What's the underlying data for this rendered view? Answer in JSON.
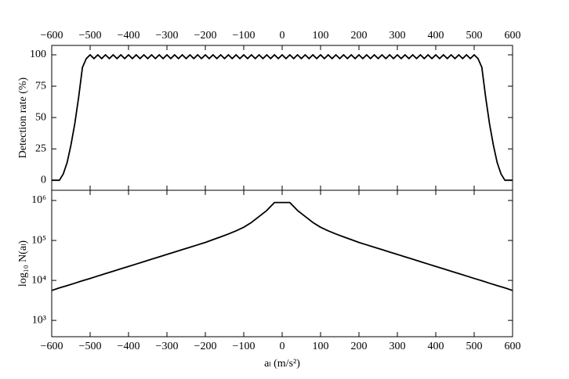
{
  "chart_data": [
    {
      "type": "line",
      "ylabel": "Detection rate (%)",
      "xaxis_position": "top",
      "x": [
        -600,
        -590,
        -580,
        -570,
        -560,
        -550,
        -540,
        -530,
        -520,
        -510,
        -500,
        -490,
        -480,
        -470,
        -460,
        -450,
        -440,
        -430,
        -420,
        -410,
        -400,
        -390,
        -380,
        -370,
        -360,
        -350,
        -340,
        -330,
        -320,
        -310,
        -300,
        -290,
        -280,
        -270,
        -260,
        -250,
        -240,
        -230,
        -220,
        -210,
        -200,
        -190,
        -180,
        -170,
        -160,
        -150,
        -140,
        -130,
        -120,
        -110,
        -100,
        -90,
        -80,
        -70,
        -60,
        -50,
        -40,
        -30,
        -20,
        -10,
        0,
        10,
        20,
        30,
        40,
        50,
        60,
        70,
        80,
        90,
        100,
        110,
        120,
        130,
        140,
        150,
        160,
        170,
        180,
        190,
        200,
        210,
        220,
        230,
        240,
        250,
        260,
        270,
        280,
        290,
        300,
        310,
        320,
        330,
        340,
        350,
        360,
        370,
        380,
        390,
        400,
        410,
        420,
        430,
        440,
        450,
        460,
        470,
        480,
        490,
        500,
        510,
        520,
        530,
        540,
        550,
        560,
        570,
        580,
        590,
        600
      ],
      "series": [
        {
          "color": "#000000",
          "values": [
            0,
            0,
            0,
            5,
            14,
            28,
            45,
            66,
            90,
            97,
            100,
            97,
            100,
            97,
            100,
            97,
            100,
            97,
            100,
            97,
            100,
            97,
            100,
            97,
            100,
            97,
            100,
            97,
            100,
            97,
            100,
            97,
            100,
            97,
            100,
            97,
            100,
            97,
            100,
            97,
            100,
            97,
            100,
            97,
            100,
            97,
            100,
            97,
            100,
            97,
            100,
            97,
            100,
            97,
            100,
            97,
            100,
            97,
            100,
            97,
            100,
            97,
            100,
            97,
            100,
            97,
            100,
            97,
            100,
            97,
            100,
            97,
            100,
            97,
            100,
            97,
            100,
            97,
            100,
            97,
            100,
            97,
            100,
            97,
            100,
            97,
            100,
            97,
            100,
            97,
            100,
            97,
            100,
            97,
            100,
            97,
            100,
            97,
            100,
            97,
            100,
            97,
            100,
            97,
            100,
            97,
            100,
            97,
            100,
            97,
            100,
            97,
            90,
            66,
            45,
            28,
            14,
            5,
            0,
            0,
            0
          ]
        }
      ],
      "xlim": [
        -600,
        600
      ],
      "xticks": [
        {
          "value": -600,
          "label": "−600"
        },
        {
          "value": -500,
          "label": "−500"
        },
        {
          "value": -400,
          "label": "−400"
        },
        {
          "value": -300,
          "label": "−300"
        },
        {
          "value": -200,
          "label": "−200"
        },
        {
          "value": -100,
          "label": "−100"
        },
        0,
        100,
        200,
        300,
        400,
        500,
        600
      ],
      "ylim": [
        -8,
        107.5
      ],
      "yticks": [
        0,
        25,
        50,
        75,
        100
      ]
    },
    {
      "type": "line",
      "ylabel": "log₁₀ N(aₗ)",
      "xlabel": "aₗ (m/s²)",
      "log_y": true,
      "xaxis_position": "bottom",
      "x": [
        -600,
        -580,
        -560,
        -540,
        -520,
        -500,
        -480,
        -460,
        -440,
        -420,
        -400,
        -380,
        -360,
        -340,
        -320,
        -300,
        -280,
        -260,
        -240,
        -220,
        -200,
        -180,
        -160,
        -140,
        -120,
        -100,
        -80,
        -60,
        -40,
        -20,
        0,
        20,
        40,
        60,
        80,
        100,
        120,
        140,
        160,
        180,
        200,
        220,
        240,
        260,
        280,
        300,
        320,
        340,
        360,
        380,
        400,
        420,
        440,
        460,
        480,
        500,
        520,
        540,
        560,
        580,
        600
      ],
      "series": [
        {
          "color": "#000000",
          "values": [
            5600,
            6500,
            7400,
            8500,
            9800,
            11200,
            12900,
            14800,
            17000,
            19500,
            22400,
            25700,
            29500,
            33900,
            38900,
            44700,
            51300,
            58900,
            67600,
            77600,
            89100,
            105000,
            123000,
            145000,
            174000,
            214000,
            282000,
            398000,
            562000,
            891000,
            891000,
            891000,
            562000,
            398000,
            282000,
            214000,
            174000,
            145000,
            123000,
            105000,
            89100,
            77600,
            67600,
            58900,
            51300,
            44700,
            38900,
            33900,
            29500,
            25700,
            22400,
            19500,
            17000,
            14800,
            12900,
            11200,
            9800,
            8500,
            7400,
            6500,
            5600
          ]
        }
      ],
      "xlim": [
        -600,
        600
      ],
      "xticks": [
        {
          "value": -600,
          "label": "−600"
        },
        {
          "value": -500,
          "label": "−500"
        },
        {
          "value": -400,
          "label": "−400"
        },
        {
          "value": -300,
          "label": "−300"
        },
        {
          "value": -200,
          "label": "−200"
        },
        {
          "value": -100,
          "label": "−100"
        },
        0,
        100,
        200,
        300,
        400,
        500,
        600
      ],
      "ylim": [
        390,
        1800000
      ],
      "yticks": [
        {
          "value": 1000,
          "label": "10³"
        },
        {
          "value": 10000,
          "label": "10⁴"
        },
        {
          "value": 100000,
          "label": "10⁵"
        },
        {
          "value": 1000000,
          "label": "10⁶"
        }
      ]
    }
  ]
}
